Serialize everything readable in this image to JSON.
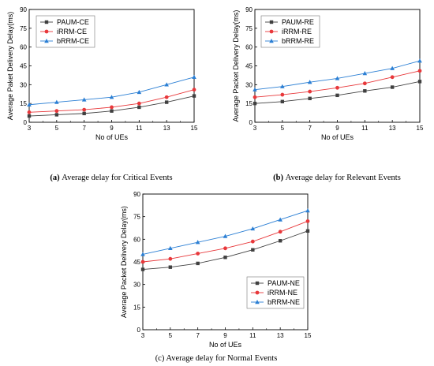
{
  "chart_data": [
    {
      "type": "line",
      "caption_label": "(a)",
      "caption_text": "Average delay for Critical Events",
      "xlabel": "No of UEs",
      "ylabel": "Average Paket Delivery Delay(ms)",
      "x": [
        3,
        5,
        7,
        9,
        11,
        13,
        15
      ],
      "xlim": [
        3,
        15
      ],
      "ylim": [
        0,
        90
      ],
      "yticks": [
        0,
        15,
        30,
        45,
        60,
        75,
        90
      ],
      "legend_position": "top-left",
      "series": [
        {
          "name": "PAUM-CE",
          "marker": "square",
          "color": "#404040",
          "values": [
            5,
            6,
            7,
            9,
            12,
            16,
            21
          ]
        },
        {
          "name": "iRRM-CE",
          "marker": "circle",
          "color": "#e8383b",
          "values": [
            8,
            9,
            10,
            12,
            15,
            20,
            26
          ]
        },
        {
          "name": "bRRM-CE",
          "marker": "triangle",
          "color": "#2b7fd4",
          "values": [
            14,
            16,
            18,
            20,
            24,
            30,
            36
          ]
        }
      ]
    },
    {
      "type": "line",
      "caption_label": "(b)",
      "caption_text": "Average delay for Relevant Events",
      "xlabel": "No of UEs",
      "ylabel": "Average Packet Delivery Delay(ms)",
      "x": [
        3,
        5,
        7,
        9,
        11,
        13,
        15
      ],
      "xlim": [
        3,
        15
      ],
      "ylim": [
        0,
        90
      ],
      "yticks": [
        0,
        15,
        30,
        45,
        60,
        75,
        90
      ],
      "legend_position": "top-left",
      "series": [
        {
          "name": "PAUM-RE",
          "marker": "square",
          "color": "#404040",
          "values": [
            15,
            16.5,
            19,
            21.5,
            25,
            28,
            32.5
          ]
        },
        {
          "name": "iRRM-RE",
          "marker": "circle",
          "color": "#e8383b",
          "values": [
            20,
            22,
            24.5,
            27.5,
            31,
            36,
            41
          ]
        },
        {
          "name": "bRRM-RE",
          "marker": "triangle",
          "color": "#2b7fd4",
          "values": [
            26,
            28.5,
            32,
            35,
            39,
            43,
            49
          ]
        }
      ]
    },
    {
      "type": "line",
      "caption_label": "",
      "caption_text": "(c) Average delay for Normal Events",
      "xlabel": "No of UEs",
      "ylabel": "Average Packet Delivery Delay(ms)",
      "x": [
        3,
        5,
        7,
        9,
        11,
        13,
        15
      ],
      "xlim": [
        3,
        15
      ],
      "ylim": [
        0,
        90
      ],
      "yticks": [
        0,
        15,
        30,
        45,
        60,
        75,
        90
      ],
      "legend_position": "bottom-right",
      "series": [
        {
          "name": "PAUM-NE",
          "marker": "square",
          "color": "#404040",
          "values": [
            40,
            41.5,
            44,
            48,
            53,
            59,
            65.5
          ]
        },
        {
          "name": "iRRM-NE",
          "marker": "circle",
          "color": "#e8383b",
          "values": [
            45,
            47,
            50.5,
            54,
            58.5,
            65,
            72
          ]
        },
        {
          "name": "bRRM-NE",
          "marker": "triangle",
          "color": "#2b7fd4",
          "values": [
            50,
            54,
            58,
            62,
            67,
            73,
            79
          ]
        }
      ]
    }
  ]
}
